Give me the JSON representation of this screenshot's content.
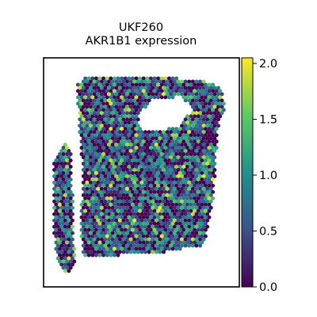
{
  "chart_data": {
    "type": "scatter",
    "title": "UKF260",
    "subtitle": "AKR1B1 expression",
    "xlabel": "",
    "ylabel": "",
    "grid": false,
    "legend": "colorbar-right",
    "colormap": "viridis",
    "value_range": [
      0.0,
      2.05
    ],
    "colorbar": {
      "ticks": [
        0.0,
        0.5,
        1.0,
        1.5,
        2.0
      ],
      "tick_labels": [
        "0.0",
        "0.5",
        "1.0",
        "1.5",
        "2.0"
      ]
    },
    "tissue_outline": [
      [
        0.21,
        0.08
      ],
      [
        0.69,
        0.08
      ],
      [
        0.69,
        0.1
      ],
      [
        0.81,
        0.1
      ],
      [
        0.91,
        0.13
      ],
      [
        0.93,
        0.21
      ],
      [
        0.89,
        0.31
      ],
      [
        0.87,
        0.6
      ],
      [
        0.82,
        0.82
      ],
      [
        0.72,
        0.83
      ],
      [
        0.55,
        0.86
      ],
      [
        0.42,
        0.86
      ],
      [
        0.2,
        0.87
      ],
      [
        0.19,
        0.75
      ],
      [
        0.2,
        0.49
      ],
      [
        0.18,
        0.28
      ],
      [
        0.17,
        0.12
      ]
    ],
    "left_strip_outline": [
      [
        0.05,
        0.46
      ],
      [
        0.11,
        0.37
      ],
      [
        0.14,
        0.42
      ],
      [
        0.15,
        0.63
      ],
      [
        0.16,
        0.91
      ],
      [
        0.13,
        0.95
      ],
      [
        0.1,
        0.92
      ],
      [
        0.07,
        0.88
      ],
      [
        0.05,
        0.75
      ]
    ],
    "gap_outline": [
      [
        0.11,
        0.37
      ],
      [
        0.18,
        0.27
      ],
      [
        0.2,
        0.49
      ],
      [
        0.19,
        0.75
      ],
      [
        0.2,
        0.87
      ],
      [
        0.16,
        0.91
      ],
      [
        0.15,
        0.63
      ],
      [
        0.14,
        0.42
      ]
    ],
    "hole_outline": [
      [
        0.48,
        0.25
      ],
      [
        0.56,
        0.18
      ],
      [
        0.7,
        0.17
      ],
      [
        0.76,
        0.22
      ],
      [
        0.7,
        0.3
      ],
      [
        0.58,
        0.32
      ],
      [
        0.5,
        0.31
      ]
    ],
    "spot_count_estimate": 2100
  }
}
